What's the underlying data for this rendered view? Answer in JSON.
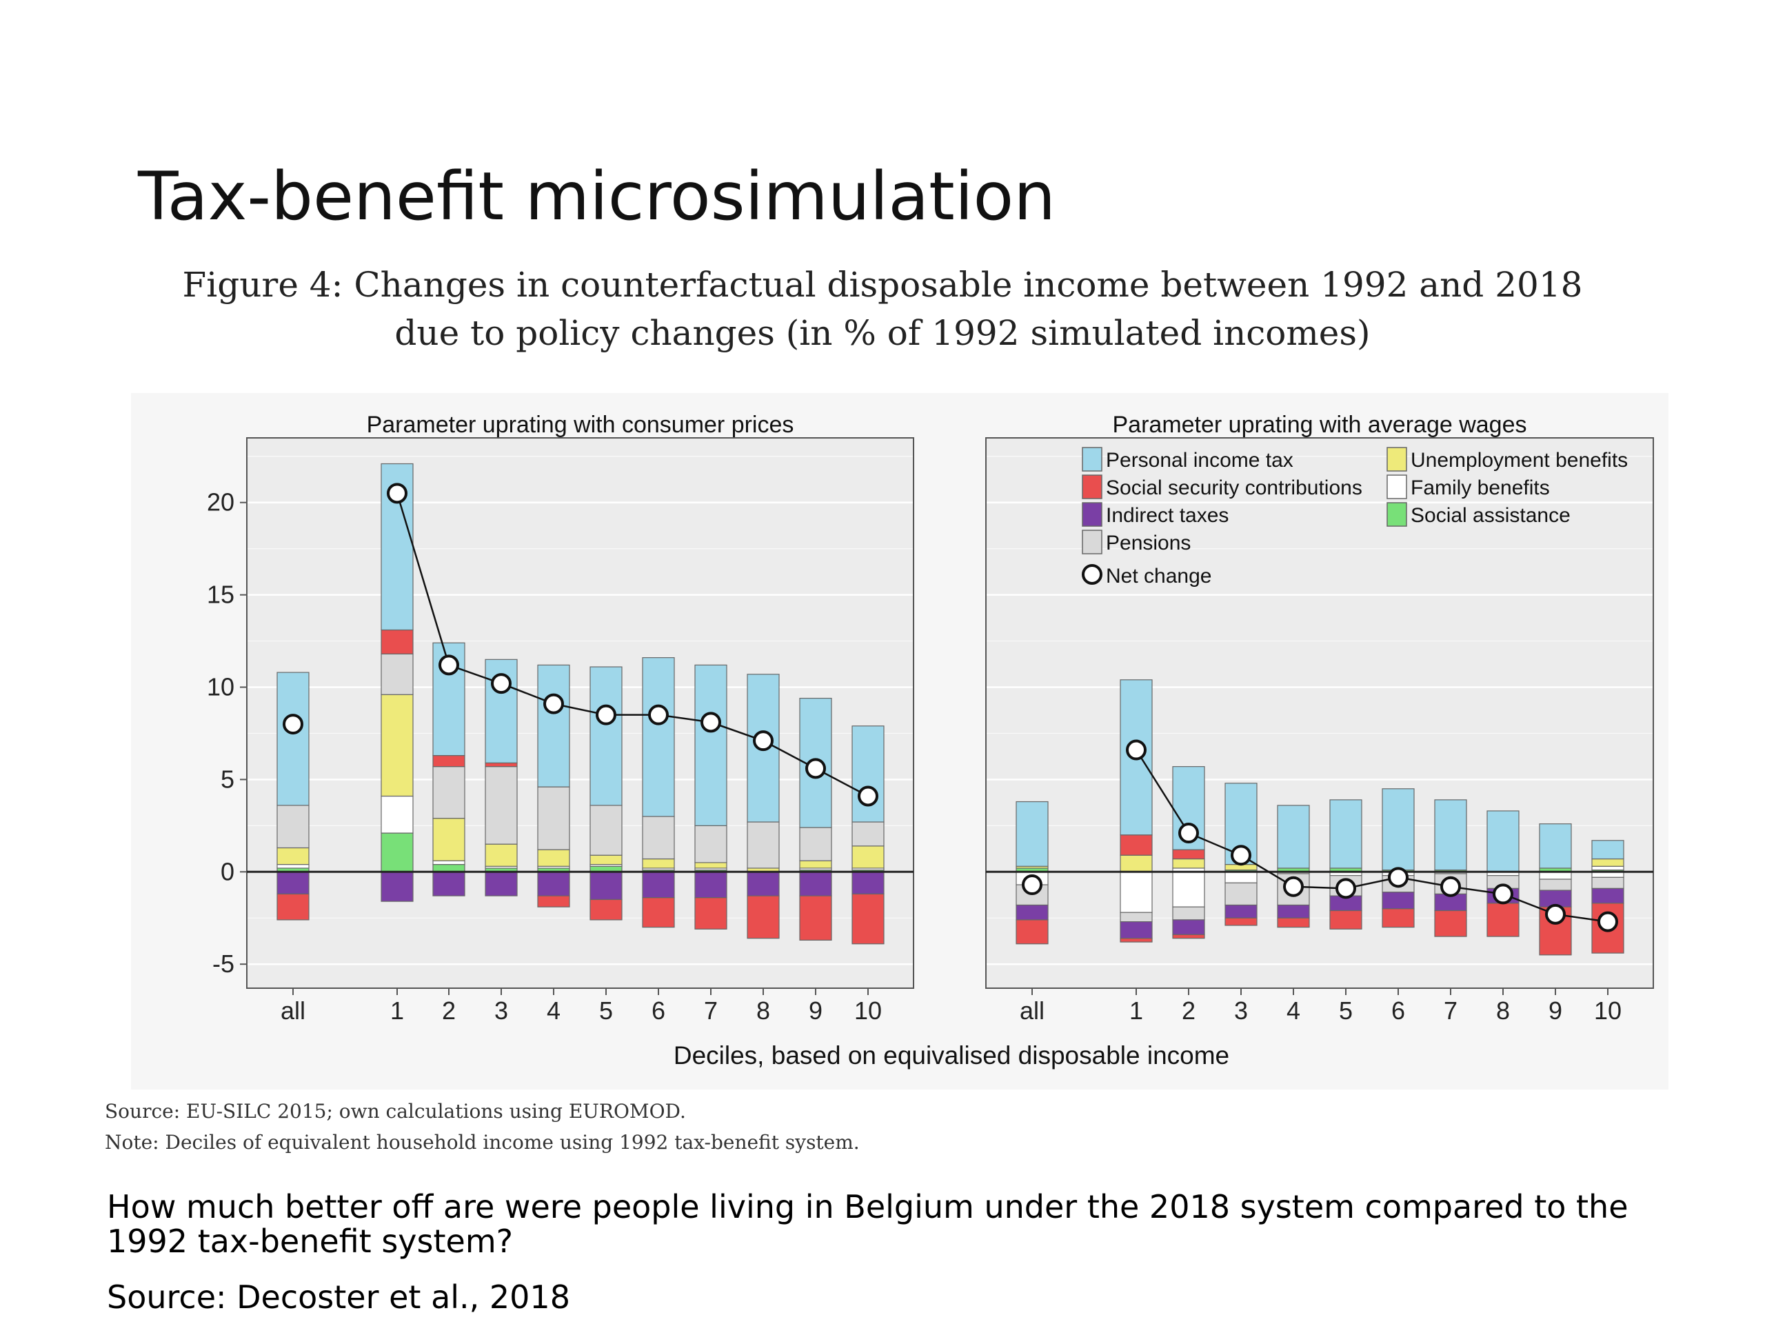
{
  "slide": {
    "title": "Tax-benefit microsimulation",
    "figure_caption_line1": "Figure 4:  Changes in counterfactual disposable income between 1992 and 2018",
    "figure_caption_line2": "due to policy changes (in % of 1992 simulated incomes)",
    "source_note": "Source: EU-SILC 2015; own calculations using EUROMOD.",
    "deciles_note": "Note: Deciles of equivalent household income using 1992 tax-benefit system.",
    "question": "How much better off are were people living in Belgium under the 2018 system compared to the 1992 tax-benefit system?",
    "reference": "Source: Decoster et al., 2018"
  },
  "colors": {
    "personal_income_tax": "#9fd7ea",
    "social_security_contributions": "#e94e4e",
    "indirect_taxes": "#7a3fa5",
    "pensions": "#d9d9d9",
    "unemployment_benefits": "#eeea7a",
    "family_benefits": "#ffffff",
    "social_assistance": "#78e078",
    "panel_bg": "#ececec",
    "grid": "#ffffff"
  },
  "chart_data": {
    "type": "bar",
    "stacked": true,
    "xlabel": "Deciles, based on equivalised disposable income",
    "ylim": [
      -6.3,
      23.5
    ],
    "yticks": [
      -5,
      0,
      5,
      10,
      15,
      20
    ],
    "categories": [
      "all",
      "1",
      "2",
      "3",
      "4",
      "5",
      "6",
      "7",
      "8",
      "9",
      "10"
    ],
    "legend": {
      "placement": "top-right panel",
      "entries": [
        {
          "key": "personal_income_tax",
          "label": "Personal income tax"
        },
        {
          "key": "unemployment_benefits",
          "label": "Unemployment benefits"
        },
        {
          "key": "social_security_contributions",
          "label": "Social security contributions"
        },
        {
          "key": "family_benefits",
          "label": "Family benefits"
        },
        {
          "key": "indirect_taxes",
          "label": "Indirect taxes"
        },
        {
          "key": "social_assistance",
          "label": "Social assistance"
        },
        {
          "key": "pensions",
          "label": "Pensions"
        }
      ],
      "net_label": "Net change"
    },
    "panels": [
      {
        "title": "Parameter uprating with consumer prices",
        "net_change": [
          8.0,
          20.5,
          11.2,
          10.2,
          9.1,
          8.5,
          8.5,
          8.1,
          7.1,
          5.6,
          4.1
        ],
        "positive": [
          {
            "key": "social_assistance",
            "values": [
              0.2,
              2.1,
              0.4,
              0.2,
              0.2,
              0.3,
              0.1,
              0.1,
              0.0,
              0.1,
              0.1
            ]
          },
          {
            "key": "family_benefits",
            "values": [
              0.2,
              2.0,
              0.2,
              0.1,
              0.1,
              0.1,
              0.1,
              0.1,
              0.0,
              0.1,
              0.1
            ]
          },
          {
            "key": "unemployment_benefits",
            "values": [
              0.9,
              5.5,
              2.3,
              1.2,
              0.9,
              0.5,
              0.5,
              0.3,
              0.2,
              0.4,
              1.2
            ]
          },
          {
            "key": "pensions",
            "values": [
              2.3,
              2.2,
              2.8,
              4.2,
              3.4,
              2.7,
              2.3,
              2.0,
              2.5,
              1.8,
              1.3
            ]
          },
          {
            "key": "social_security_contributions",
            "values": [
              0.0,
              1.3,
              0.6,
              0.2,
              0.0,
              0.0,
              0.0,
              0.0,
              0.0,
              0.0,
              0.0
            ]
          },
          {
            "key": "personal_income_tax",
            "values": [
              7.2,
              9.0,
              6.1,
              5.6,
              6.6,
              7.5,
              8.6,
              8.7,
              8.0,
              7.0,
              5.2
            ]
          }
        ],
        "negative": [
          {
            "key": "indirect_taxes",
            "values": [
              -1.2,
              -1.6,
              -1.3,
              -1.3,
              -1.3,
              -1.5,
              -1.4,
              -1.4,
              -1.3,
              -1.3,
              -1.2
            ]
          },
          {
            "key": "social_security_contributions",
            "values": [
              -1.4,
              0.0,
              0.0,
              0.0,
              -0.6,
              -1.1,
              -1.6,
              -1.7,
              -2.3,
              -2.4,
              -2.7
            ]
          }
        ]
      },
      {
        "title": "Parameter uprating with average wages",
        "net_change": [
          -0.7,
          6.6,
          2.1,
          0.9,
          -0.8,
          -0.9,
          -0.3,
          -0.8,
          -1.2,
          -2.3,
          -2.7
        ],
        "positive": [
          {
            "key": "social_assistance",
            "values": [
              0.2,
              0.0,
              0.0,
              0.1,
              0.2,
              0.2,
              0.1,
              0.1,
              0.0,
              0.2,
              0.1
            ]
          },
          {
            "key": "family_benefits",
            "values": [
              0.0,
              0.0,
              0.2,
              0.0,
              0.0,
              0.0,
              0.0,
              0.0,
              0.0,
              0.0,
              0.2
            ]
          },
          {
            "key": "unemployment_benefits",
            "values": [
              0.1,
              0.9,
              0.5,
              0.3,
              0.0,
              0.0,
              0.0,
              0.0,
              0.0,
              0.0,
              0.4
            ]
          },
          {
            "key": "social_security_contributions",
            "values": [
              0.0,
              1.1,
              0.5,
              0.0,
              0.0,
              0.0,
              0.0,
              0.0,
              0.0,
              0.0,
              0.0
            ]
          },
          {
            "key": "personal_income_tax",
            "values": [
              3.5,
              8.4,
              4.5,
              4.4,
              3.4,
              3.7,
              4.4,
              3.8,
              3.3,
              2.4,
              1.0
            ]
          }
        ],
        "negative": [
          {
            "key": "family_benefits",
            "values": [
              -0.7,
              -2.2,
              -1.9,
              -0.6,
              -0.1,
              -0.2,
              -0.2,
              -0.1,
              -0.2,
              -0.4,
              -0.3
            ]
          },
          {
            "key": "pensions",
            "values": [
              -1.1,
              -0.5,
              -0.7,
              -1.2,
              -1.7,
              -1.1,
              -0.9,
              -1.1,
              -0.7,
              -0.6,
              -0.6
            ]
          },
          {
            "key": "indirect_taxes",
            "values": [
              -0.8,
              -0.9,
              -0.8,
              -0.7,
              -0.7,
              -0.8,
              -0.9,
              -0.9,
              -0.8,
              -0.9,
              -0.8
            ]
          },
          {
            "key": "social_security_contributions",
            "values": [
              -1.3,
              -0.2,
              -0.2,
              -0.4,
              -0.5,
              -1.0,
              -1.0,
              -1.4,
              -1.8,
              -2.6,
              -2.7
            ]
          }
        ]
      }
    ]
  }
}
